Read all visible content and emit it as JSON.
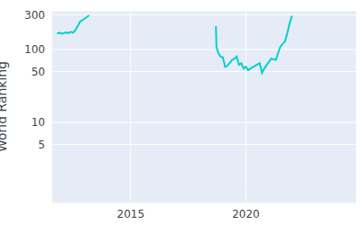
{
  "chart_data": {
    "type": "line",
    "y_label": "World Ranking",
    "x": [
      2011.8,
      2011.9,
      2012.0,
      2012.2,
      2012.3,
      2012.4,
      2012.5,
      2012.6,
      2012.7,
      2012.8,
      2013.0,
      2013.2,
      2015.9,
      2018.7,
      2018.72,
      2018.8,
      2018.9,
      2019.0,
      2019.1,
      2019.2,
      2019.4,
      2019.5,
      2019.6,
      2019.7,
      2019.8,
      2019.9,
      2020.0,
      2020.1,
      2020.2,
      2020.4,
      2020.6,
      2020.7,
      2020.8,
      2021.0,
      2021.1,
      2021.3,
      2021.4,
      2021.5,
      2021.7,
      2021.8,
      2021.9,
      2022.0
    ],
    "values": [
      165,
      170,
      165,
      172,
      168,
      175,
      170,
      185,
      210,
      240,
      265,
      295,
      null,
      210,
      110,
      90,
      80,
      78,
      58,
      60,
      72,
      75,
      80,
      62,
      65,
      55,
      58,
      52,
      55,
      60,
      65,
      48,
      55,
      68,
      75,
      72,
      90,
      110,
      130,
      170,
      230,
      290
    ],
    "color": "#00cfd1",
    "xlim": [
      2011.6,
      2024.8
    ],
    "xticks": [
      2015,
      2020
    ],
    "ylim": [
      0.8,
      340
    ],
    "yticks": [
      5,
      10,
      50,
      100,
      300
    ],
    "log": "y",
    "grid": true
  }
}
